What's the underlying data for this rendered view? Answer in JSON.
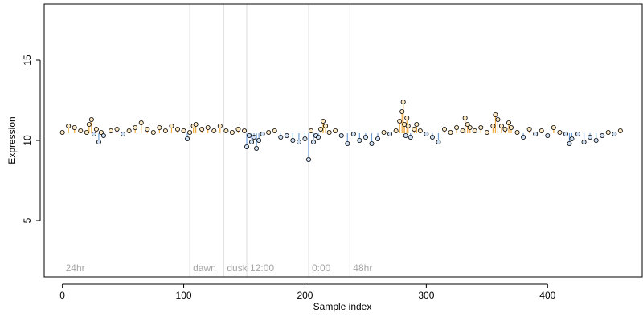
{
  "chart_data": {
    "type": "scatter",
    "title": "",
    "xlabel": "Sample index",
    "ylabel": "Expression",
    "xlim": [
      -15,
      478
    ],
    "ylim": [
      1.5,
      18.5
    ],
    "x_ticks": [
      0,
      100,
      200,
      300,
      400
    ],
    "y_ticks": [
      5,
      10,
      15
    ],
    "baseline": 10.45,
    "grid": false,
    "legend": "none",
    "colors": {
      "above_baseline": "#f2a93b",
      "below_baseline": "#6f9fd8",
      "point_fill_above": "#fde9c4",
      "point_fill_below": "#cfe0f5",
      "point_edge": "#000000",
      "annotation_line": "#dcdcdc",
      "annotation_text": "#a6a6a6"
    },
    "annotations": [
      {
        "x": 0,
        "label": "24hr",
        "line": false
      },
      {
        "x": 105,
        "label": "dawn",
        "line": true
      },
      {
        "x": 133,
        "label": "dusk",
        "line": true
      },
      {
        "x": 152,
        "label": "12:00",
        "line": true
      },
      {
        "x": 203,
        "label": "0:00",
        "line": true
      },
      {
        "x": 237,
        "label": "48hr",
        "line": true
      }
    ],
    "series": [
      {
        "x": [
          0,
          5,
          10,
          15,
          20,
          22,
          24,
          26,
          28,
          30,
          32,
          34,
          40,
          45,
          50,
          55,
          60,
          65,
          70,
          75,
          80,
          85,
          90,
          95,
          100,
          103,
          105,
          108,
          110,
          115,
          120,
          125,
          130,
          135,
          140,
          145,
          150,
          152,
          154,
          156,
          158,
          160,
          162,
          165,
          170,
          175,
          180,
          185,
          190,
          195,
          200,
          203,
          205,
          207,
          209,
          211,
          213,
          215,
          217,
          220,
          225,
          230,
          235,
          240,
          245,
          250,
          255,
          260,
          265,
          270,
          275,
          278,
          280,
          281,
          282,
          283,
          284,
          285,
          287,
          290,
          292,
          295,
          300,
          305,
          310,
          315,
          320,
          325,
          330,
          332,
          334,
          336,
          340,
          345,
          350,
          355,
          357,
          359,
          362,
          365,
          368,
          370,
          375,
          380,
          385,
          390,
          395,
          400,
          405,
          410,
          415,
          418,
          420,
          425,
          430,
          435,
          440,
          445,
          450,
          455,
          460
        ],
        "y": [
          10.5,
          10.9,
          10.8,
          10.6,
          10.5,
          11.0,
          11.3,
          10.4,
          10.7,
          9.9,
          10.5,
          10.3,
          10.6,
          10.7,
          10.4,
          10.6,
          10.8,
          11.1,
          10.7,
          10.5,
          10.8,
          10.6,
          10.9,
          10.7,
          10.6,
          10.1,
          10.5,
          10.9,
          11.0,
          10.7,
          10.8,
          10.6,
          10.9,
          10.6,
          10.5,
          10.7,
          10.6,
          9.6,
          10.3,
          9.9,
          10.2,
          9.5,
          10.0,
          10.4,
          10.5,
          10.6,
          10.2,
          10.3,
          10.0,
          9.9,
          10.1,
          8.8,
          10.6,
          9.9,
          10.3,
          10.2,
          10.7,
          11.2,
          10.9,
          10.5,
          10.6,
          10.3,
          9.8,
          10.4,
          10.0,
          10.2,
          9.8,
          10.1,
          10.5,
          10.4,
          10.6,
          11.2,
          11.8,
          12.4,
          11.0,
          10.3,
          11.4,
          10.9,
          10.2,
          10.7,
          11.0,
          10.6,
          10.4,
          10.2,
          9.9,
          10.7,
          10.5,
          10.8,
          10.6,
          11.4,
          11.0,
          10.8,
          10.6,
          10.8,
          10.5,
          10.9,
          11.6,
          11.3,
          10.9,
          10.7,
          11.1,
          10.8,
          10.5,
          10.2,
          10.7,
          10.4,
          10.6,
          10.3,
          10.8,
          10.5,
          10.4,
          9.8,
          10.1,
          10.4,
          9.9,
          10.2,
          10.0,
          10.3,
          10.5,
          10.4,
          10.6
        ]
      }
    ]
  }
}
